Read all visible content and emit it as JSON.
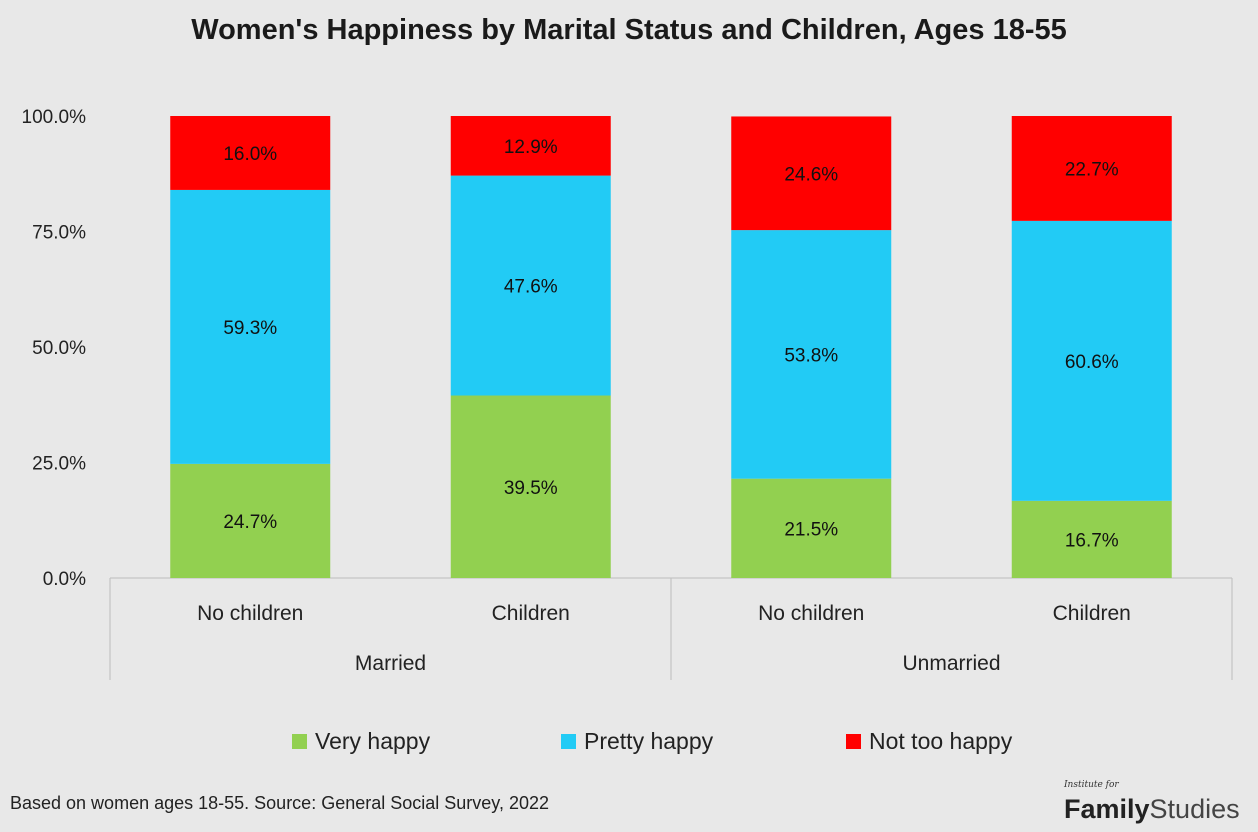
{
  "chart_data": {
    "type": "bar",
    "stacked": true,
    "title": "Women's Happiness by Marital Status and Children, Ages 18-55",
    "categories": [
      "No children",
      "Children",
      "No children",
      "Children"
    ],
    "groups": [
      {
        "label": "Married",
        "categories": [
          "No children",
          "Children"
        ]
      },
      {
        "label": "Unmarried",
        "categories": [
          "No children",
          "Children"
        ]
      }
    ],
    "series": [
      {
        "name": "Very happy",
        "color": "#92d050",
        "values": [
          24.7,
          39.5,
          21.5,
          16.7
        ],
        "labels": [
          "24.7%",
          "39.5%",
          "21.5%",
          "16.7%"
        ]
      },
      {
        "name": "Pretty happy",
        "color": "#22cbf5",
        "values": [
          59.3,
          47.6,
          53.8,
          60.6
        ],
        "labels": [
          "59.3%",
          "47.6%",
          "53.8%",
          "60.6%"
        ]
      },
      {
        "name": "Not too happy",
        "color": "#ff0000",
        "values": [
          16.0,
          12.9,
          24.6,
          22.7
        ],
        "labels": [
          "16.0%",
          "12.9%",
          "24.6%",
          "22.7%"
        ]
      }
    ],
    "ylim": [
      0,
      100
    ],
    "yticks": [
      0,
      25,
      50,
      75,
      100
    ],
    "ytick_labels": [
      "0.0%",
      "25.0%",
      "50.0%",
      "75.0%",
      "100.0%"
    ],
    "legend_position": "bottom",
    "grid": false
  },
  "footnote": "Based on women ages 18-55. Source: General Social Survey, 2022",
  "brand": {
    "pre": "Institute for",
    "family": "Family",
    "studies": "Studies"
  }
}
